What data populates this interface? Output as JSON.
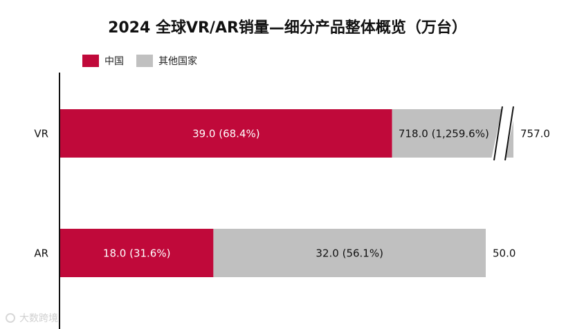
{
  "chart_data": {
    "type": "bar",
    "orientation": "horizontal",
    "stacked": true,
    "title": "2024 全球VR/AR销量—细分产品整体概览（万台）",
    "categories": [
      "VR",
      "AR"
    ],
    "series": [
      {
        "name": "中国",
        "color": "#c0093a",
        "values": [
          39.0,
          18.0
        ],
        "labels": [
          "39.0 (68.4%)",
          "18.0 (31.6%)"
        ]
      },
      {
        "name": "其他国家",
        "color": "#c0c0c0",
        "values": [
          718.0,
          32.0
        ],
        "labels": [
          "718.0 (1,259.6%)",
          "32.0 (56.1%)"
        ]
      }
    ],
    "totals": [
      757.0,
      50.0
    ],
    "total_labels": [
      "757.0",
      "50.0"
    ],
    "axis_break": "VR bar broken (not to scale)",
    "legend_position": "top-left",
    "grid": false
  },
  "watermark": "大数跨境"
}
